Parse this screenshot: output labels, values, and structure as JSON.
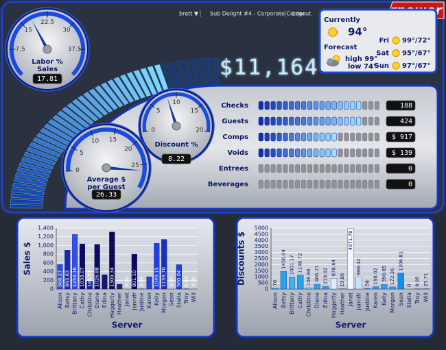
{
  "header": {
    "user": "brett ▼",
    "location": "Sub Delight #4 - Corporate Center",
    "logout": "Logout",
    "logo": "rpower"
  },
  "weather": {
    "current_label": "Currently",
    "current_temp": "94°",
    "forecast_label": "Forecast",
    "high": "high 99°",
    "low": "low 74°",
    "days": [
      {
        "day": "Fri",
        "temps": "99°/72°"
      },
      {
        "day": "Sat",
        "temps": "95°/67°"
      },
      {
        "day": "Sun",
        "temps": "97°/67°"
      }
    ]
  },
  "sales_total": "$11,164",
  "sales_meter": {
    "level": 36,
    "max": 44
  },
  "gauges": [
    {
      "title": [
        "Labor %",
        "Sales"
      ],
      "value": 17.81,
      "lim": [
        0,
        45
      ],
      "ticks": [
        7.5,
        15,
        22.5,
        30,
        37.5
      ]
    },
    {
      "title": [
        "Discount %"
      ],
      "value": 8.22,
      "lim": [
        0,
        20
      ],
      "ticks": [
        0,
        5,
        10,
        15,
        20
      ]
    },
    {
      "title": [
        "Average $",
        "per Guest"
      ],
      "value": 26.33,
      "lim": [
        0,
        30
      ],
      "ticks": [
        0,
        5,
        10,
        15,
        20,
        25
      ]
    }
  ],
  "metrics": [
    {
      "name": "Checks",
      "value": "188",
      "level": 17,
      "max": 20
    },
    {
      "name": "Guests",
      "value": "424",
      "level": 17,
      "max": 20
    },
    {
      "name": "Comps",
      "value": "$ 917",
      "level": 13,
      "max": 20
    },
    {
      "name": "Voids",
      "value": "$ 139",
      "level": 13,
      "max": 20
    },
    {
      "name": "Entrees",
      "value": "0",
      "level": 0,
      "max": 20
    },
    {
      "name": "Beverages",
      "value": "0",
      "level": 0,
      "max": 20
    }
  ],
  "chart_data": [
    {
      "type": "bar",
      "y_label": "Sales $",
      "x_label": "Server",
      "categories": [
        "Alison",
        "Betsy",
        "Brittany",
        "Cathy",
        "Christine",
        "Diane",
        "Edina",
        "Haggerty",
        "Heather",
        "Janet",
        "Jennifr",
        "Justine",
        "Karen",
        "Kelly",
        "Morgan",
        "Sean",
        "Stella",
        "Troy",
        "Will"
      ],
      "values": [
        568.27,
        893.63,
        1253.16,
        1038.07,
        184.57,
        1026.88,
        330,
        1309.34,
        110,
        0,
        801.1,
        3.36,
        283,
        1049.15,
        1139.7,
        0,
        560.04,
        6.84,
        0
      ],
      "value_labels": [
        "568.27",
        "893.63",
        "1253.16",
        "1038.07",
        "184.57",
        "1026.88",
        null,
        "1309.34",
        null,
        "0.00",
        "801.10",
        "3.36",
        null,
        "1049.15",
        "1139.70",
        "0.00",
        "560.04",
        "6.84",
        "0.00"
      ],
      "colors": [
        "#2a4fe0",
        "#1a2ab0",
        "#3050f0",
        "#0a0a60",
        "#1020a0",
        "#0a0c60",
        "#141870",
        "#0a0a50",
        "#1a2080",
        "#1a2080",
        "#0a0a60",
        "#1a2080",
        "#2040d0",
        "#2040e0",
        "#1a30c0",
        "#1a2080",
        "#1e40e0",
        "#5060d0",
        "#1a2080"
      ],
      "ylim": [
        0,
        1400
      ],
      "yticks": [
        0,
        200,
        400,
        600,
        800,
        {
          "value": 1000,
          "label": "1,000"
        },
        {
          "value": 1200,
          "label": "1,200"
        },
        {
          "value": 1400,
          "label": "1,400"
        }
      ],
      "grid": true
    },
    {
      "type": "bar",
      "y_label": "Discounts $",
      "x_label": "Server",
      "categories": [
        "Alison",
        "Betsy",
        "Brittany",
        "Cathy",
        "Christine",
        "Diane",
        "Edina",
        "Haggerty",
        "Heather",
        "Janet",
        "Jennifr",
        "Justine",
        "Karen",
        "Kelly",
        "Morgan",
        "Sean",
        "Stella",
        "Troy",
        "Will"
      ],
      "values": [
        70,
        1458.04,
        1001.17,
        1148.72,
        108.98,
        406.21,
        219.02,
        878.64,
        19.86,
        4971.78,
        969.42,
        58,
        198.02,
        390.85,
        172.36,
        1306.81,
        0,
        9.95,
        25.71
      ],
      "colors": [
        "#2aa0ee",
        "#2aa0ee",
        "#40b0f0",
        "#2aa0ee",
        "#7cc8f4",
        "#2aa0ee",
        "#2aa0ee",
        "#d8eefc",
        "#2aa0ee",
        "#f2f8ff",
        "#c0e4fa",
        "#2aa0ee",
        "#2aa0ee",
        "#2aa0ee",
        "#2aa0ee",
        "#1090e8",
        "#2aa0ee",
        "#2aa0ee",
        "#2aa0ee"
      ],
      "ylim": [
        0,
        5000
      ],
      "yticks": [
        0,
        500,
        1000,
        1500,
        2000,
        2500,
        3000,
        3500,
        4000,
        4500,
        5000
      ],
      "grid": true
    }
  ]
}
